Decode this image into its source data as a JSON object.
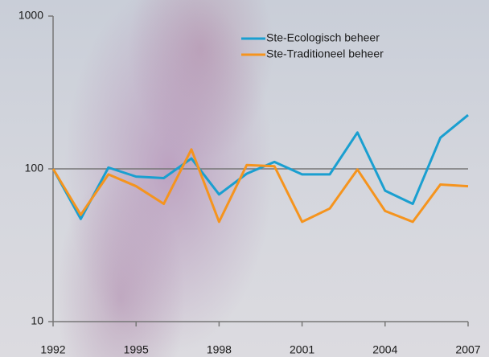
{
  "chart_data": {
    "type": "line",
    "x": [
      1992,
      1993,
      1994,
      1995,
      1996,
      1997,
      1998,
      1999,
      2000,
      2001,
      2002,
      2003,
      2004,
      2005,
      2006,
      2007
    ],
    "series": [
      {
        "name": "Ste-Ecologisch beheer",
        "color": "#1a9fd0",
        "values": [
          100,
          47,
          102,
          89,
          87,
          117,
          68,
          93,
          111,
          92,
          92,
          173,
          72,
          59,
          160,
          225
        ]
      },
      {
        "name": "Ste-Traditioneel beheer",
        "color": "#f5941e",
        "values": [
          100,
          50,
          92,
          77,
          59,
          134,
          45,
          106,
          104,
          45,
          55,
          99,
          53,
          45,
          79,
          77
        ]
      }
    ],
    "xlim": [
      1992,
      2007
    ],
    "xticks": [
      1992,
      1995,
      1998,
      2001,
      2004,
      2007
    ],
    "ylim": [
      10,
      1000
    ],
    "yticks": [
      10,
      100,
      1000
    ],
    "log_y": true,
    "grid": true,
    "legend": "upper right"
  }
}
